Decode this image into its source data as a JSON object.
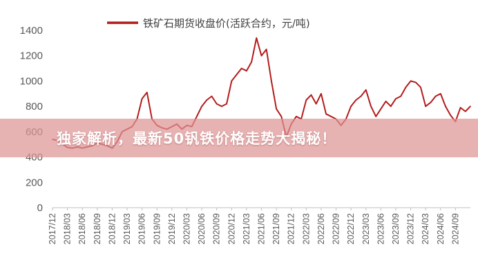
{
  "banner": {
    "title": "独家解析，最新50钒铁价格走势大揭秘！"
  },
  "chart_data": {
    "type": "line",
    "title": "",
    "xlabel": "",
    "ylabel": "",
    "ylim": [
      0,
      1400
    ],
    "yticks": [
      0,
      200,
      400,
      600,
      800,
      1000,
      1200,
      1400
    ],
    "legend_position": "top",
    "grid": false,
    "x_tick_labels": [
      "2017/12",
      "2018/03",
      "2018/06",
      "2018/09",
      "2018/12",
      "2019/03",
      "2019/06",
      "2019/09",
      "2019/12",
      "2020/03",
      "2020/06",
      "2020/09",
      "2020/12",
      "2021/03",
      "2021/06",
      "2021/09",
      "2021/12",
      "2022/03",
      "2022/06",
      "2022/09",
      "2022/12",
      "2023/03",
      "2023/06",
      "2023/09",
      "2023/12",
      "2024/03",
      "2024/06",
      "2024/09"
    ],
    "series": [
      {
        "name": "铁矿石期货收盘价(活跃合约，元/吨)",
        "color": "#b31b1b",
        "points": [
          [
            "2017/12",
            540
          ],
          [
            "2018/01",
            530
          ],
          [
            "2018/02",
            505
          ],
          [
            "2018/03",
            475
          ],
          [
            "2018/04",
            470
          ],
          [
            "2018/05",
            480
          ],
          [
            "2018/06",
            470
          ],
          [
            "2018/07",
            480
          ],
          [
            "2018/08",
            490
          ],
          [
            "2018/09",
            510
          ],
          [
            "2018/10",
            500
          ],
          [
            "2018/11",
            490
          ],
          [
            "2018/12",
            470
          ],
          [
            "2019/01",
            520
          ],
          [
            "2019/02",
            600
          ],
          [
            "2019/03",
            620
          ],
          [
            "2019/04",
            640
          ],
          [
            "2019/05",
            700
          ],
          [
            "2019/06",
            860
          ],
          [
            "2019/07",
            910
          ],
          [
            "2019/08",
            700
          ],
          [
            "2019/09",
            650
          ],
          [
            "2019/10",
            630
          ],
          [
            "2019/11",
            620
          ],
          [
            "2019/12",
            640
          ],
          [
            "2020/01",
            660
          ],
          [
            "2020/02",
            620
          ],
          [
            "2020/03",
            650
          ],
          [
            "2020/04",
            640
          ],
          [
            "2020/05",
            720
          ],
          [
            "2020/06",
            800
          ],
          [
            "2020/07",
            850
          ],
          [
            "2020/08",
            880
          ],
          [
            "2020/09",
            820
          ],
          [
            "2020/10",
            800
          ],
          [
            "2020/11",
            820
          ],
          [
            "2020/12",
            1000
          ],
          [
            "2021/01",
            1050
          ],
          [
            "2021/02",
            1100
          ],
          [
            "2021/03",
            1080
          ],
          [
            "2021/04",
            1150
          ],
          [
            "2021/05",
            1340
          ],
          [
            "2021/06",
            1200
          ],
          [
            "2021/07",
            1250
          ],
          [
            "2021/08",
            1000
          ],
          [
            "2021/09",
            780
          ],
          [
            "2021/10",
            720
          ],
          [
            "2021/11",
            560
          ],
          [
            "2021/12",
            660
          ],
          [
            "2022/01",
            720
          ],
          [
            "2022/02",
            700
          ],
          [
            "2022/03",
            850
          ],
          [
            "2022/04",
            890
          ],
          [
            "2022/05",
            820
          ],
          [
            "2022/06",
            900
          ],
          [
            "2022/07",
            740
          ],
          [
            "2022/08",
            720
          ],
          [
            "2022/09",
            700
          ],
          [
            "2022/10",
            650
          ],
          [
            "2022/11",
            700
          ],
          [
            "2022/12",
            800
          ],
          [
            "2023/01",
            850
          ],
          [
            "2023/02",
            880
          ],
          [
            "2023/03",
            930
          ],
          [
            "2023/04",
            800
          ],
          [
            "2023/05",
            720
          ],
          [
            "2023/06",
            780
          ],
          [
            "2023/07",
            840
          ],
          [
            "2023/08",
            800
          ],
          [
            "2023/09",
            860
          ],
          [
            "2023/10",
            880
          ],
          [
            "2023/11",
            950
          ],
          [
            "2023/12",
            1000
          ],
          [
            "2024/01",
            990
          ],
          [
            "2024/02",
            950
          ],
          [
            "2024/03",
            800
          ],
          [
            "2024/04",
            830
          ],
          [
            "2024/05",
            880
          ],
          [
            "2024/06",
            900
          ],
          [
            "2024/07",
            800
          ],
          [
            "2024/08",
            730
          ],
          [
            "2024/09",
            680
          ],
          [
            "2024/10",
            790
          ],
          [
            "2024/11",
            760
          ],
          [
            "2024/12",
            800
          ]
        ]
      }
    ]
  }
}
